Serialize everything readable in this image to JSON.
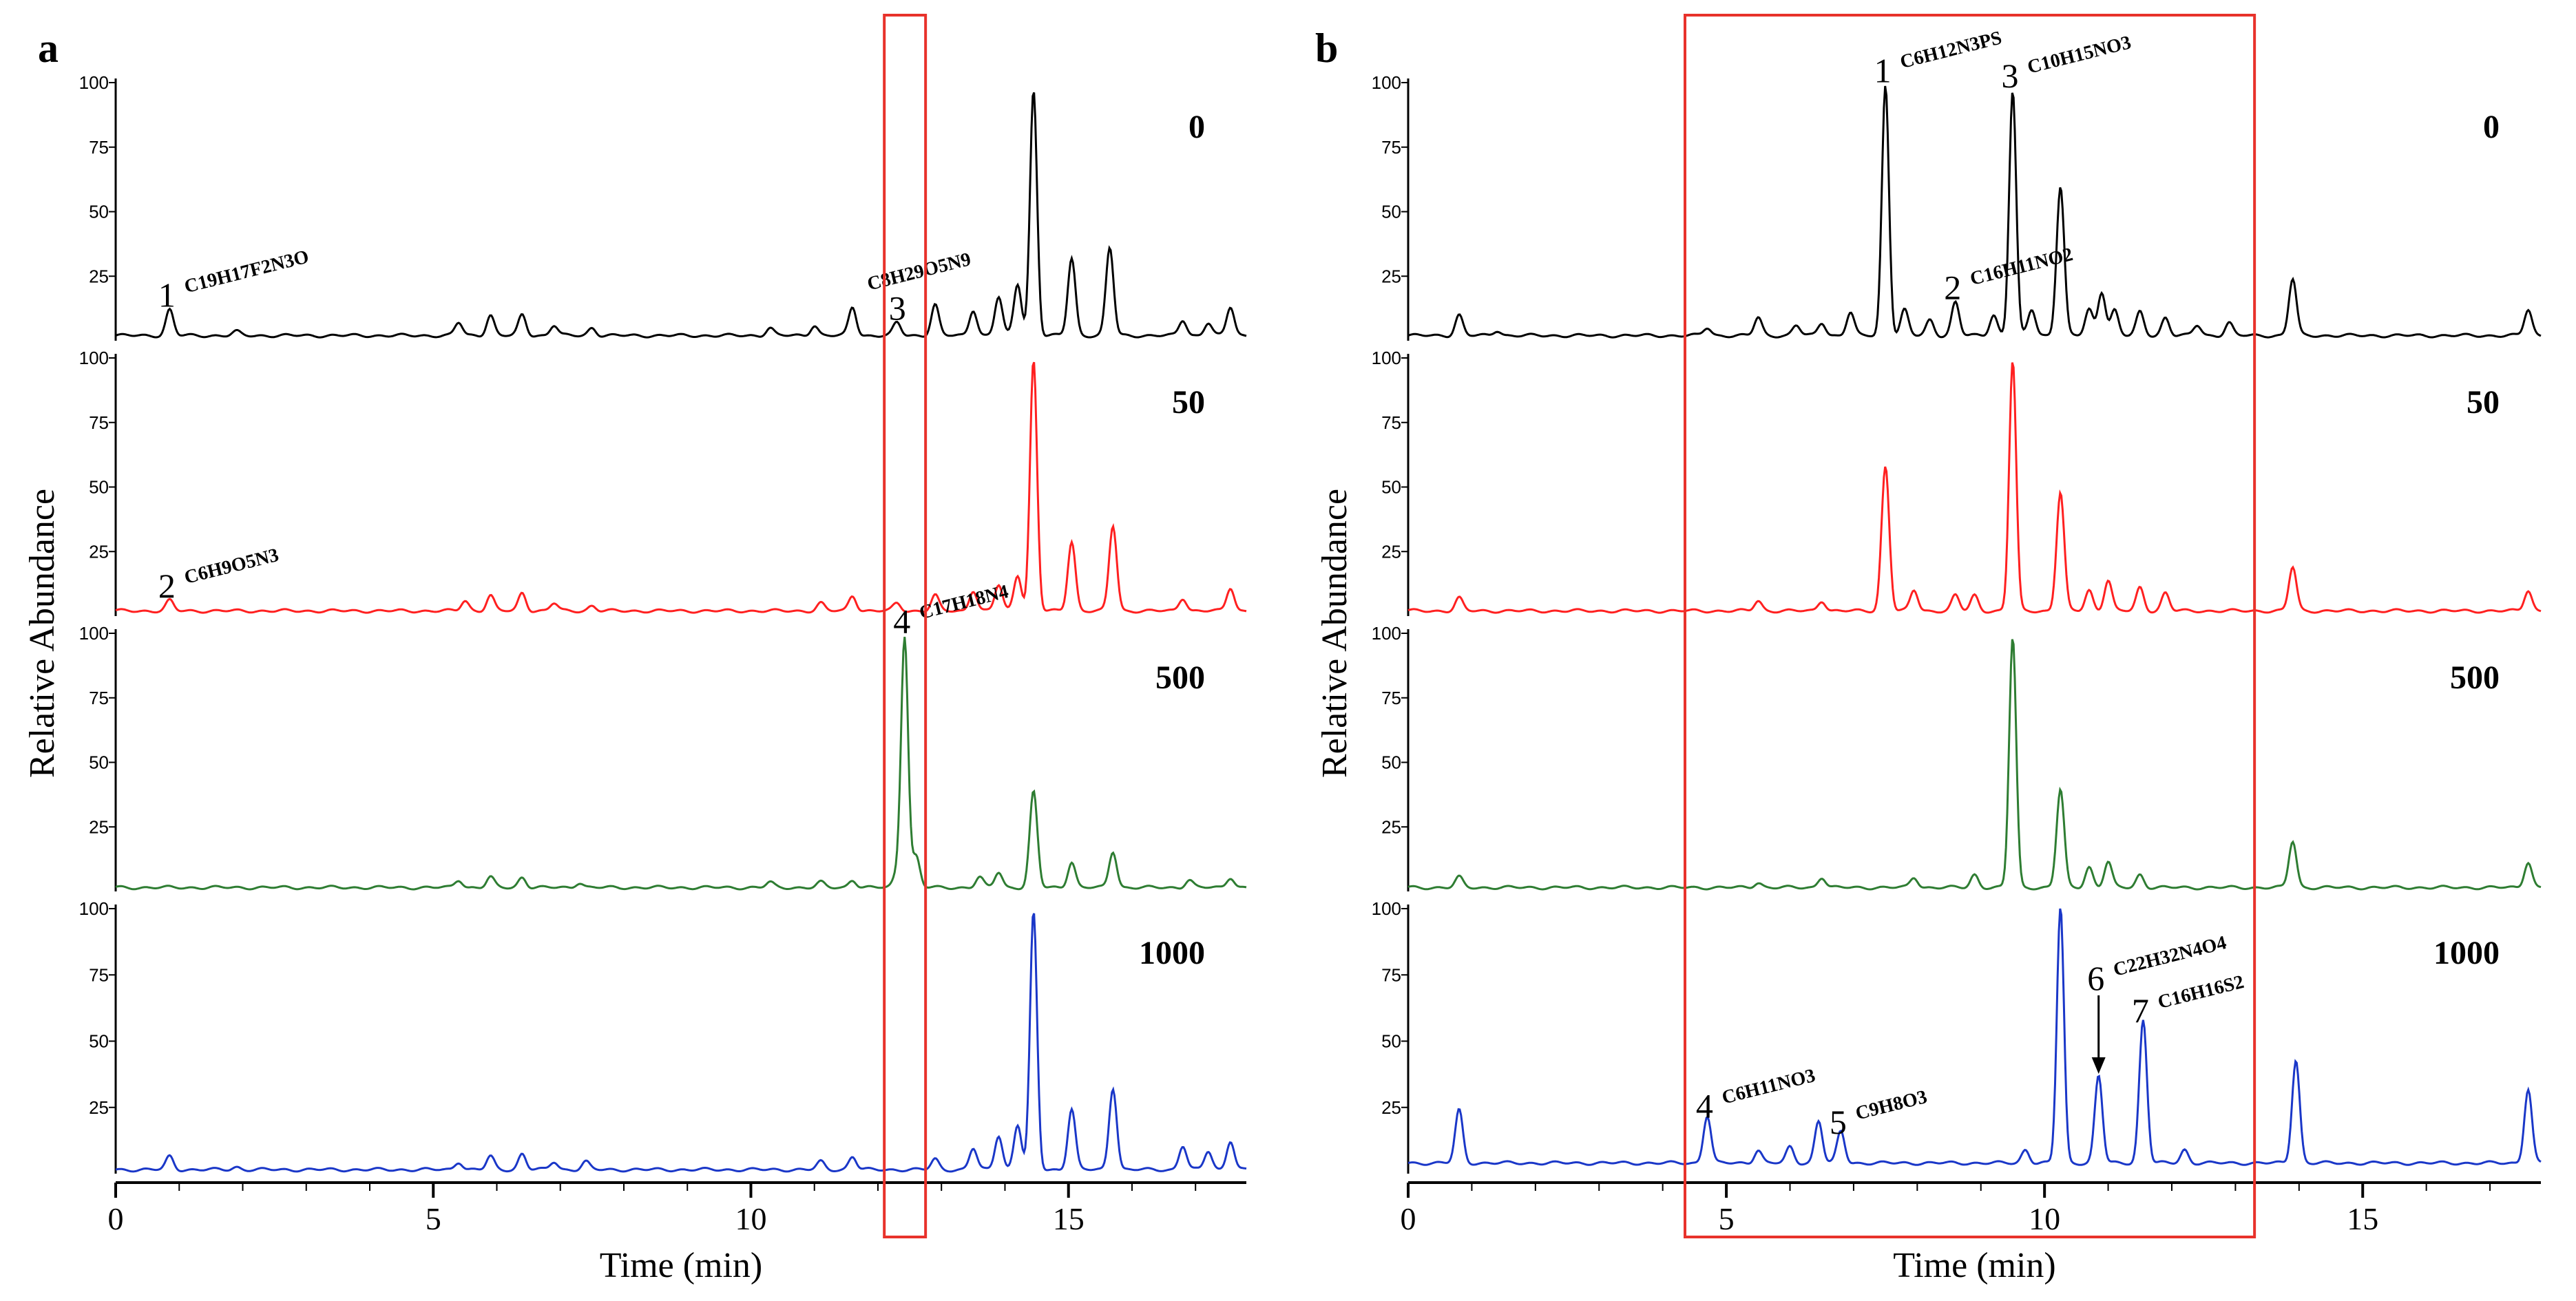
{
  "chart_data": [
    {
      "type": "line",
      "panel": "a",
      "title": "",
      "xlabel": "Time (min)",
      "ylabel": "Relative Abundance",
      "xlim": [
        0,
        17.8
      ],
      "ylim": [
        0,
        100
      ],
      "x_ticks": [
        "0",
        "5",
        "10",
        "15"
      ],
      "y_ticks": [
        "25",
        "50",
        "75",
        "100"
      ],
      "highlight_box": {
        "x_range": [
          12.1,
          12.75
        ],
        "color": "#e8322b"
      },
      "traces": [
        {
          "name": "0",
          "label": "0",
          "color": "#000000",
          "baseline": 2,
          "peaks": [
            [
              0.85,
              10
            ],
            [
              1.9,
              1.5
            ],
            [
              5.4,
              5
            ],
            [
              5.9,
              8
            ],
            [
              6.4,
              8
            ],
            [
              6.9,
              4
            ],
            [
              7.5,
              3
            ],
            [
              10.3,
              3
            ],
            [
              11,
              4
            ],
            [
              11.6,
              11
            ],
            [
              12.3,
              5
            ],
            [
              12.9,
              12
            ],
            [
              13.5,
              10
            ],
            [
              13.9,
              15
            ],
            [
              14.2,
              20
            ],
            [
              14.45,
              95
            ],
            [
              15.05,
              30
            ],
            [
              15.65,
              34
            ],
            [
              16.8,
              6
            ],
            [
              17.2,
              5
            ],
            [
              17.55,
              11
            ]
          ],
          "annotations": [
            {
              "number": "1",
              "formula": "C19H17F2N3O",
              "x": 0.85
            },
            {
              "number": "",
              "formula": "C8H29O5N9",
              "x": 11.6
            },
            {
              "number": "3",
              "formula": "",
              "x": 12.35
            }
          ]
        },
        {
          "name": "50",
          "label": "50",
          "color": "#ff2020",
          "baseline": 2,
          "peaks": [
            [
              0.85,
              4
            ],
            [
              5.5,
              4
            ],
            [
              5.9,
              6
            ],
            [
              6.4,
              7
            ],
            [
              6.9,
              3
            ],
            [
              7.5,
              2
            ],
            [
              11.1,
              3
            ],
            [
              11.6,
              6
            ],
            [
              12.3,
              3
            ],
            [
              12.9,
              6
            ],
            [
              13.5,
              8
            ],
            [
              13.9,
              10
            ],
            [
              14.2,
              14
            ],
            [
              14.45,
              97
            ],
            [
              15.05,
              27
            ],
            [
              15.7,
              33
            ],
            [
              16.8,
              5
            ],
            [
              17.55,
              9
            ]
          ],
          "annotations": [
            {
              "number": "2",
              "formula": "C6H9O5N3",
              "x": 0.85
            }
          ]
        },
        {
          "name": "500",
          "label": "500",
          "color": "#2e7d32",
          "baseline": 1.5,
          "peaks": [
            [
              5.4,
              3
            ],
            [
              5.9,
              4
            ],
            [
              6.4,
              4
            ],
            [
              7.3,
              2
            ],
            [
              10.3,
              2
            ],
            [
              11.1,
              2
            ],
            [
              11.6,
              3
            ],
            [
              12.3,
              5
            ],
            [
              12.42,
              97
            ],
            [
              12.6,
              12
            ],
            [
              13.6,
              4
            ],
            [
              13.9,
              6
            ],
            [
              14.45,
              37
            ],
            [
              15.05,
              10
            ],
            [
              15.7,
              14
            ],
            [
              16.9,
              3
            ],
            [
              17.55,
              4
            ]
          ],
          "annotations": [
            {
              "number": "4",
              "formula": "C17H18N4",
              "x": 12.42
            }
          ]
        },
        {
          "name": "1000",
          "label": "1000",
          "color": "#1a37c8",
          "baseline": 1.5,
          "peaks": [
            [
              0.85,
              5
            ],
            [
              1.9,
              1
            ],
            [
              5.4,
              3
            ],
            [
              5.9,
              5
            ],
            [
              6.4,
              6
            ],
            [
              6.9,
              3
            ],
            [
              7.4,
              3
            ],
            [
              11.1,
              3
            ],
            [
              11.6,
              5
            ],
            [
              12.9,
              4
            ],
            [
              13.5,
              8
            ],
            [
              13.9,
              13
            ],
            [
              14.2,
              17
            ],
            [
              14.45,
              97
            ],
            [
              15.05,
              23
            ],
            [
              15.7,
              31
            ],
            [
              16.8,
              9
            ],
            [
              17.2,
              7
            ],
            [
              17.55,
              11
            ]
          ],
          "annotations": []
        }
      ]
    },
    {
      "type": "line",
      "panel": "b",
      "title": "",
      "xlabel": "Time (min)",
      "ylabel": "Relative Abundance",
      "xlim": [
        0,
        17.8
      ],
      "ylim": [
        0,
        100
      ],
      "x_ticks": [
        "0",
        "5",
        "10",
        "15"
      ],
      "y_ticks": [
        "25",
        "50",
        "75",
        "100"
      ],
      "highlight_box": {
        "x_range": [
          4.35,
          13.3
        ],
        "color": "#e8322b"
      },
      "traces": [
        {
          "name": "0",
          "label": "0",
          "color": "#000000",
          "baseline": 2,
          "peaks": [
            [
              0.8,
              8
            ],
            [
              1.4,
              2
            ],
            [
              4.7,
              3
            ],
            [
              5.5,
              7
            ],
            [
              6.1,
              4
            ],
            [
              6.5,
              5
            ],
            [
              6.95,
              9
            ],
            [
              7.5,
              97
            ],
            [
              7.8,
              10
            ],
            [
              8.2,
              6
            ],
            [
              8.6,
              13
            ],
            [
              9.2,
              8
            ],
            [
              9.5,
              95
            ],
            [
              9.8,
              10
            ],
            [
              10.25,
              58
            ],
            [
              10.7,
              10
            ],
            [
              10.9,
              17
            ],
            [
              11.1,
              10
            ],
            [
              11.5,
              9
            ],
            [
              11.9,
              7
            ],
            [
              12.4,
              4
            ],
            [
              12.9,
              5
            ],
            [
              13.9,
              22
            ],
            [
              17.6,
              10
            ]
          ],
          "annotations": [
            {
              "number": "1",
              "formula": "C6H12N3PS",
              "x": 7.5
            },
            {
              "number": "2",
              "formula": "C16H11NO2",
              "x": 8.6
            },
            {
              "number": "3",
              "formula": "C10H15NO3",
              "x": 9.5
            }
          ]
        },
        {
          "name": "50",
          "label": "50",
          "color": "#ff2020",
          "baseline": 2,
          "peaks": [
            [
              0.8,
              5
            ],
            [
              5.5,
              4
            ],
            [
              6.5,
              4
            ],
            [
              7.5,
              56
            ],
            [
              7.95,
              8
            ],
            [
              8.6,
              6
            ],
            [
              8.9,
              6
            ],
            [
              9.5,
              97
            ],
            [
              10.25,
              46
            ],
            [
              10.7,
              8
            ],
            [
              11,
              12
            ],
            [
              11.5,
              9
            ],
            [
              11.9,
              7
            ],
            [
              13.9,
              17
            ],
            [
              17.6,
              8
            ]
          ],
          "annotations": []
        },
        {
          "name": "500",
          "label": "500",
          "color": "#2e7d32",
          "baseline": 1.5,
          "peaks": [
            [
              0.8,
              4
            ],
            [
              5.5,
              2
            ],
            [
              6.5,
              4
            ],
            [
              7.95,
              4
            ],
            [
              8.9,
              5
            ],
            [
              9.5,
              97
            ],
            [
              10.25,
              38
            ],
            [
              10.7,
              8
            ],
            [
              11,
              10
            ],
            [
              11.5,
              5
            ],
            [
              13.9,
              18
            ],
            [
              17.6,
              10
            ]
          ],
          "annotations": []
        },
        {
          "name": "1000",
          "label": "1000",
          "color": "#1a37c8",
          "baseline": 4,
          "peaks": [
            [
              0.8,
              20
            ],
            [
              4.7,
              18
            ],
            [
              5.5,
              5
            ],
            [
              6.0,
              6
            ],
            [
              6.45,
              16
            ],
            [
              6.8,
              12
            ],
            [
              9.7,
              5
            ],
            [
              10.25,
              97
            ],
            [
              10.85,
              33
            ],
            [
              11.55,
              54
            ],
            [
              12.2,
              5
            ],
            [
              13.95,
              39
            ],
            [
              17.6,
              28
            ]
          ],
          "annotations": [
            {
              "number": "4",
              "formula": "C6H11NO3",
              "x": 4.7
            },
            {
              "number": "5",
              "formula": "C9H8O3",
              "x": 6.8
            },
            {
              "number": "6",
              "formula": "C22H32N4O4",
              "x": 10.85,
              "arrow": true
            },
            {
              "number": "7",
              "formula": "C16H16S2",
              "x": 11.55
            }
          ]
        }
      ]
    }
  ]
}
